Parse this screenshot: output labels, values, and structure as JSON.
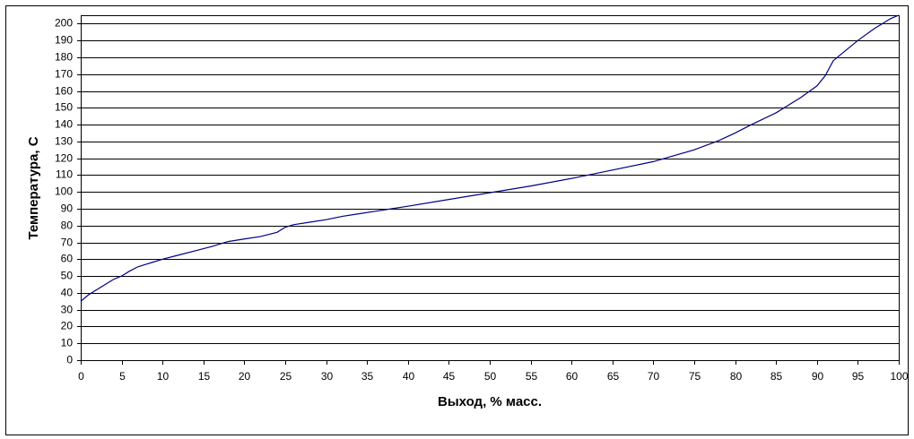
{
  "chart_data": {
    "type": "line",
    "x_label": "Выход, % масс.",
    "y_label": "Температура, С",
    "x": [
      0,
      1,
      2,
      3,
      4,
      5,
      6,
      7,
      8,
      9,
      10,
      12,
      14,
      16,
      18,
      20,
      22,
      24,
      25,
      26,
      28,
      30,
      32,
      34,
      36,
      38,
      40,
      45,
      50,
      55,
      60,
      62,
      65,
      70,
      75,
      78,
      80,
      82,
      85,
      88,
      90,
      91,
      92,
      93,
      95,
      97,
      99,
      100
    ],
    "values": [
      35,
      39,
      42,
      45,
      48,
      50,
      53,
      55.5,
      57,
      58.5,
      60,
      62.5,
      65,
      67.5,
      70.5,
      72,
      73.5,
      76,
      79,
      80.5,
      82,
      83.5,
      85.5,
      87,
      88.5,
      90,
      91.5,
      95.5,
      99.5,
      103.5,
      108,
      110,
      113,
      118,
      125,
      130.5,
      135,
      140,
      147,
      156,
      163,
      169,
      178,
      182,
      190,
      197,
      203,
      205
    ],
    "color": "#000080",
    "xlim": [
      0,
      100
    ],
    "ylim": [
      0,
      205
    ],
    "xticks": [
      0,
      5,
      10,
      15,
      20,
      25,
      30,
      35,
      40,
      45,
      50,
      55,
      60,
      65,
      70,
      75,
      80,
      85,
      90,
      95,
      100
    ],
    "yticks": [
      0,
      10,
      20,
      30,
      40,
      50,
      60,
      70,
      80,
      90,
      100,
      110,
      120,
      130,
      140,
      150,
      160,
      170,
      180,
      190,
      200
    ],
    "grid": true
  }
}
